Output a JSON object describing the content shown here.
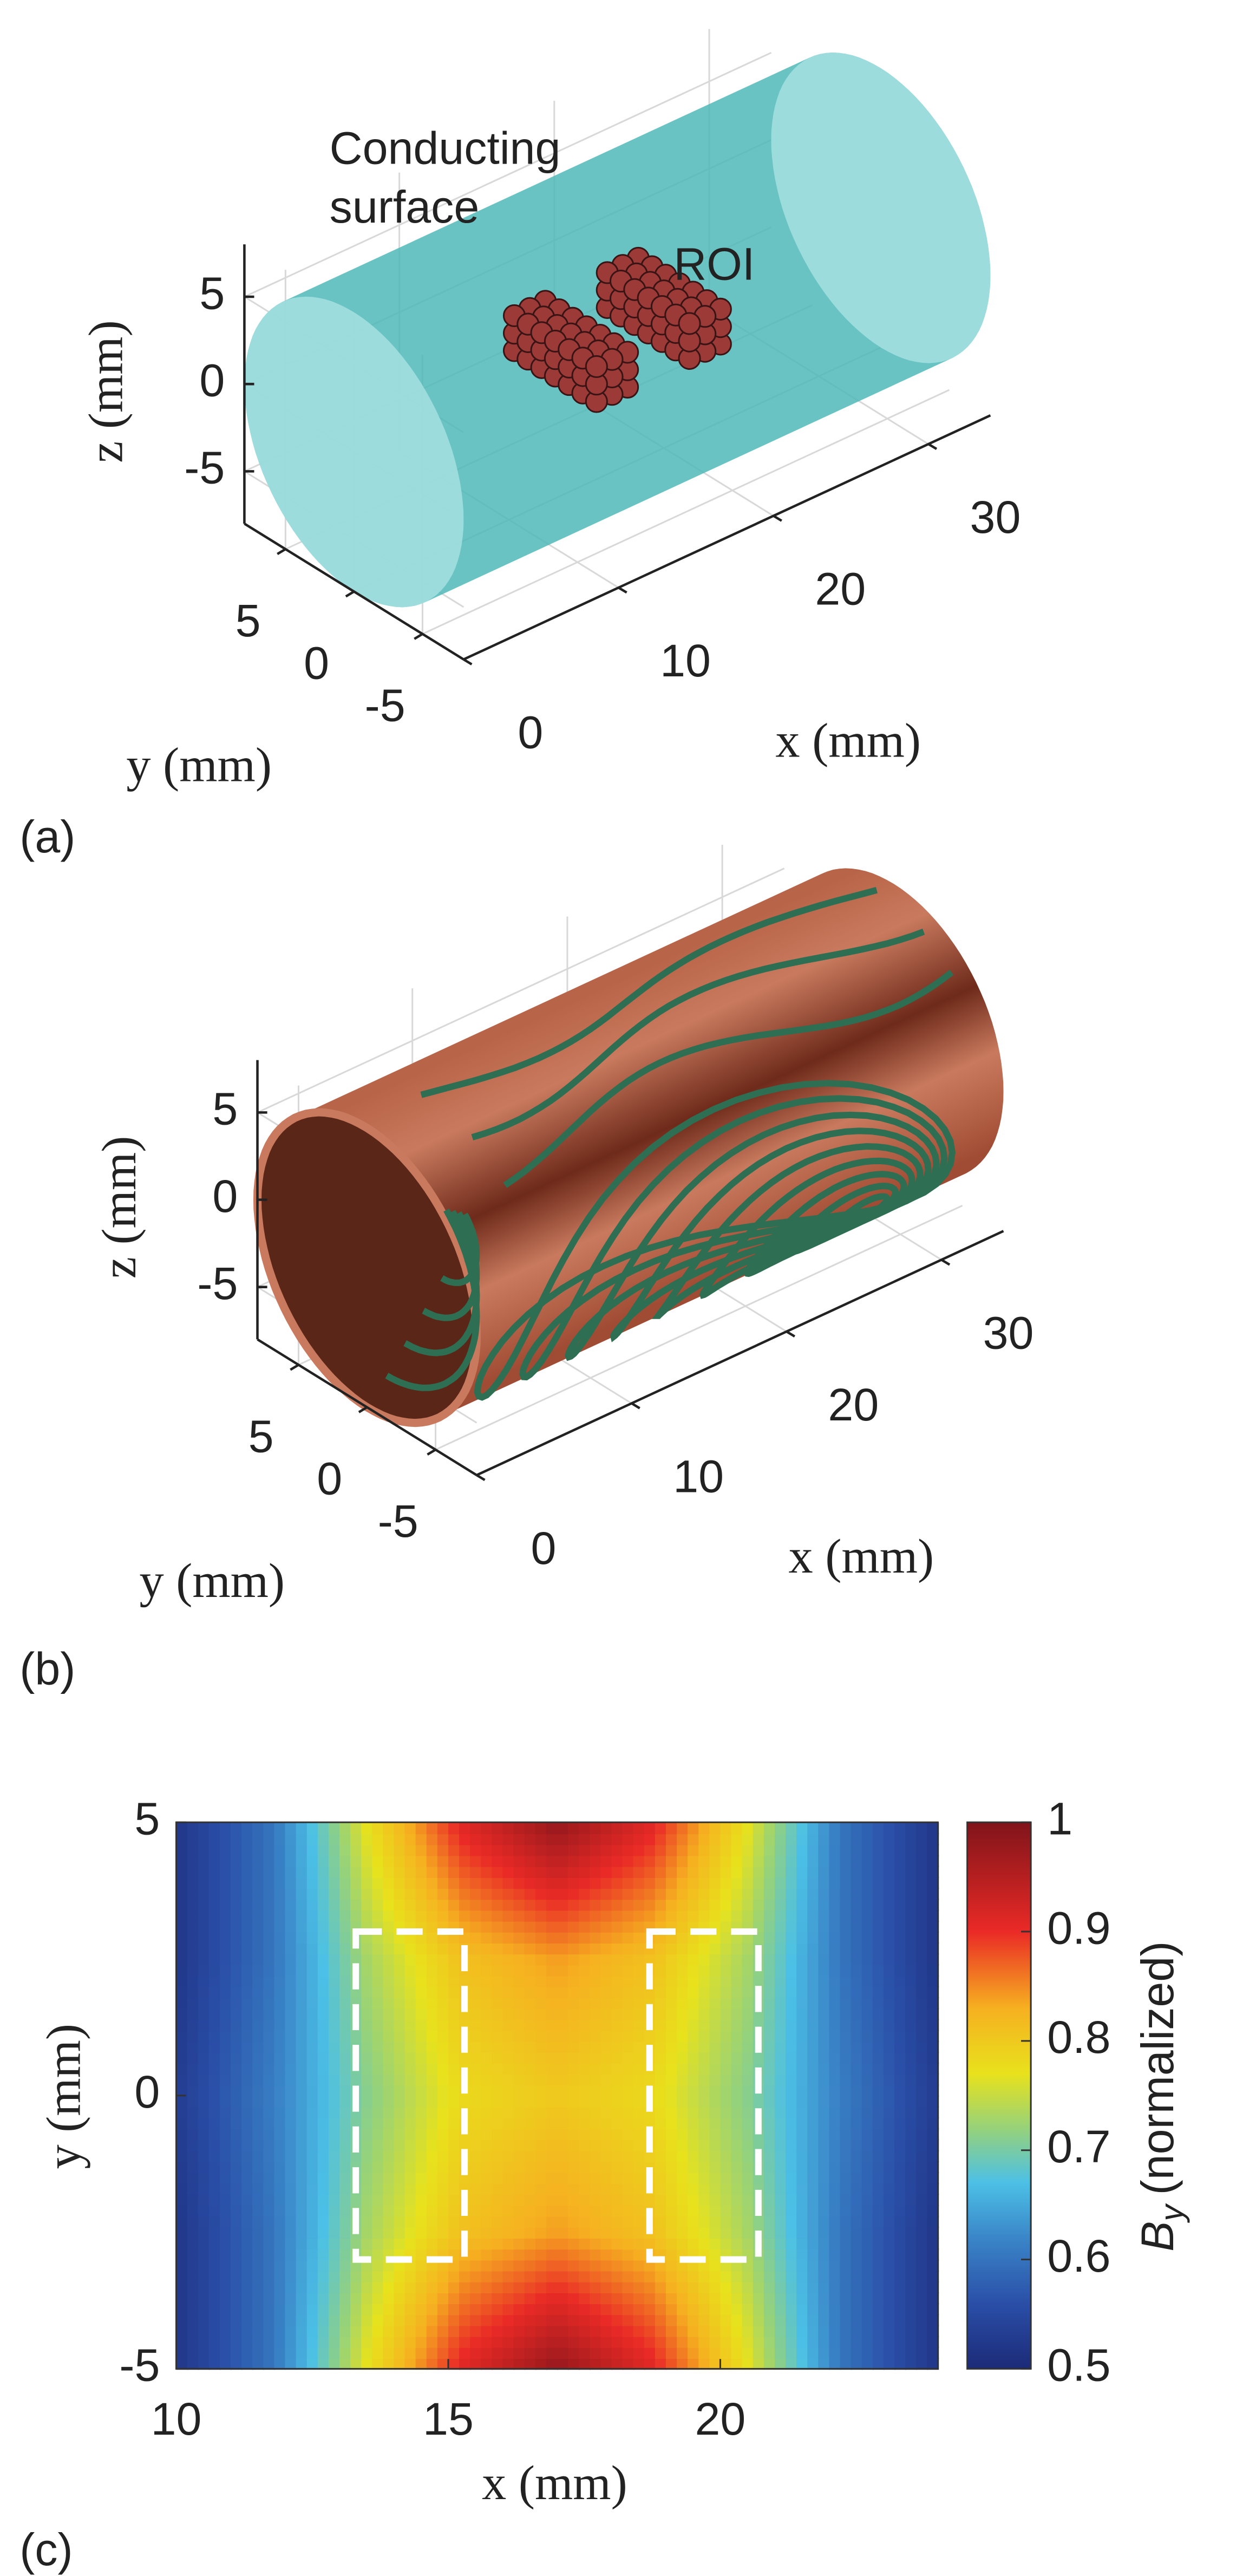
{
  "chart_data": [
    {
      "type": "surface3d",
      "panel_label": "(a)",
      "annotation": [
        "Conducting",
        "surface"
      ],
      "roi_label": "ROI",
      "roi_color": "#e8232a",
      "xlabel": "x (mm)",
      "ylabel": "y (mm)",
      "zlabel": "z (mm)",
      "xlim": [
        0,
        34
      ],
      "ylim": [
        -8,
        8
      ],
      "zlim": [
        -8,
        8
      ],
      "xticks": [
        0,
        10,
        20,
        30
      ],
      "yticks": [
        -5,
        0,
        5
      ],
      "zticks": [
        -5,
        0,
        5
      ],
      "surface_color": "#4fb8b8",
      "grid": true,
      "roi_boxes": [
        {
          "x": [
            13,
            15
          ],
          "y": [
            -3,
            3
          ],
          "z": [
            -1,
            1
          ]
        },
        {
          "x": [
            19,
            21
          ],
          "y": [
            -3,
            3
          ],
          "z": [
            -1,
            1
          ]
        }
      ]
    },
    {
      "type": "surface3d",
      "panel_label": "(b)",
      "xlabel": "x (mm)",
      "ylabel": "y (mm)",
      "zlabel": "z (mm)",
      "xlim": [
        0,
        34
      ],
      "ylim": [
        -8,
        8
      ],
      "zlim": [
        -8,
        8
      ],
      "xticks": [
        0,
        10,
        20,
        30
      ],
      "yticks": [
        -5,
        0,
        5
      ],
      "zticks": [
        -5,
        0,
        5
      ],
      "surface_color": "#c97a5e",
      "contour_color": "#2e6e52",
      "grid": true
    },
    {
      "type": "heatmap",
      "panel_label": "(c)",
      "xlabel": "x (mm)",
      "ylabel": "y (mm)",
      "xlim": [
        10,
        24
      ],
      "ylim": [
        -5,
        5
      ],
      "xticks": [
        10,
        15,
        20
      ],
      "yticks": [
        -5,
        0,
        5
      ],
      "x": [
        10,
        11.75,
        13.5,
        15.25,
        17,
        18.75,
        20.5,
        22.25,
        24
      ],
      "y": [
        -5,
        -2.5,
        0,
        2.5,
        5
      ],
      "values": [
        [
          0.52,
          0.6,
          0.77,
          0.91,
          0.98,
          0.91,
          0.77,
          0.6,
          0.52
        ],
        [
          0.52,
          0.6,
          0.73,
          0.81,
          0.84,
          0.81,
          0.73,
          0.6,
          0.52
        ],
        [
          0.53,
          0.61,
          0.71,
          0.78,
          0.8,
          0.78,
          0.71,
          0.61,
          0.53
        ],
        [
          0.52,
          0.6,
          0.73,
          0.81,
          0.84,
          0.81,
          0.73,
          0.6,
          0.52
        ],
        [
          0.52,
          0.6,
          0.77,
          0.91,
          0.98,
          0.91,
          0.77,
          0.6,
          0.52
        ]
      ],
      "clim": [
        0.5,
        1
      ],
      "cticks": [
        0.5,
        0.6,
        0.7,
        0.8,
        0.9,
        1
      ],
      "colorbar_label": {
        "symbol": "B",
        "subscript": "y",
        "text": "(normalized)"
      },
      "colormap": [
        {
          "value": 0.5,
          "color": "#1c2a78"
        },
        {
          "value": 0.56,
          "color": "#2a4fa8"
        },
        {
          "value": 0.62,
          "color": "#3a86c8"
        },
        {
          "value": 0.67,
          "color": "#4cc0e6"
        },
        {
          "value": 0.72,
          "color": "#96d27a"
        },
        {
          "value": 0.77,
          "color": "#e8e21c"
        },
        {
          "value": 0.83,
          "color": "#f6b020"
        },
        {
          "value": 0.9,
          "color": "#ea2a26"
        },
        {
          "value": 1,
          "color": "#80141a"
        }
      ],
      "roi_boxes": [
        {
          "x": [
            13.3,
            15.3
          ],
          "y": [
            -3,
            3
          ]
        },
        {
          "x": [
            18.7,
            20.7
          ],
          "y": [
            -3,
            3
          ]
        }
      ]
    }
  ]
}
